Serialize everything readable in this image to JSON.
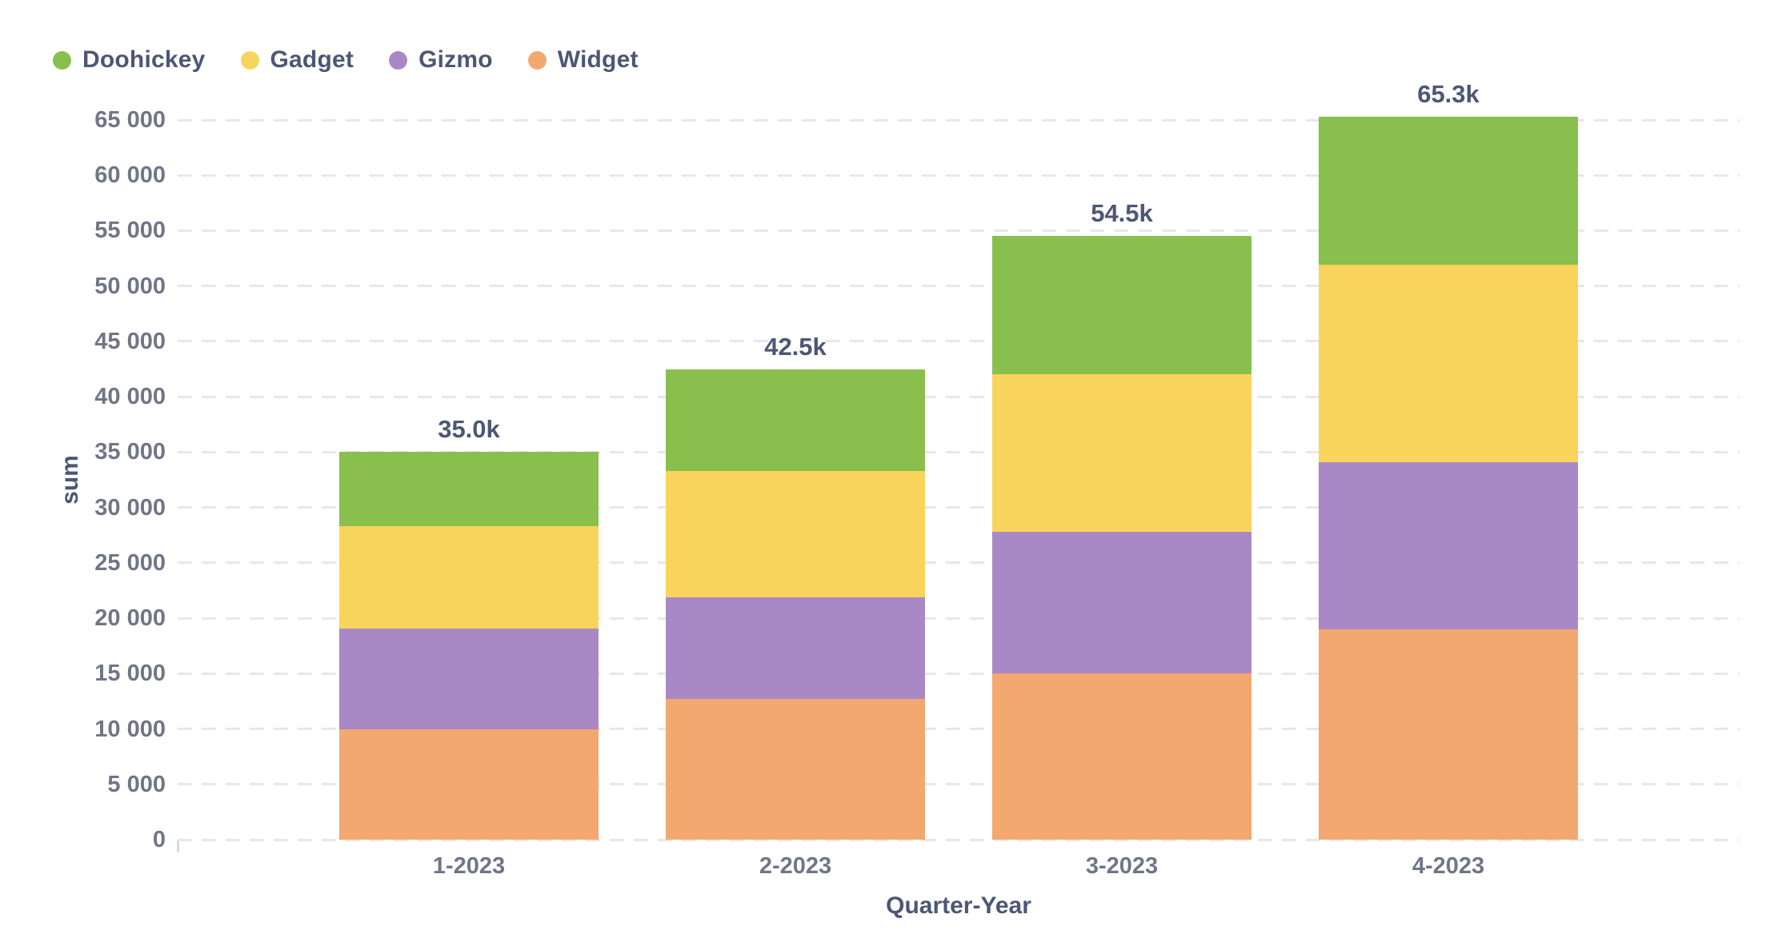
{
  "chart": {
    "y_axis_title": "sum",
    "x_axis_title": "Quarter-Year"
  },
  "chart_data": {
    "type": "bar",
    "stacked": true,
    "categories": [
      "1-2023",
      "2-2023",
      "3-2023",
      "4-2023"
    ],
    "series": [
      {
        "name": "Doohickey",
        "color": "#88BF4D",
        "values": [
          6700,
          9200,
          12500,
          13400
        ]
      },
      {
        "name": "Gadget",
        "color": "#F9D45C",
        "values": [
          9250,
          11400,
          14200,
          17800
        ]
      },
      {
        "name": "Gizmo",
        "color": "#A989C5",
        "values": [
          9100,
          9200,
          12750,
          15100
        ]
      },
      {
        "name": "Widget",
        "color": "#F2A86F",
        "values": [
          9950,
          12700,
          15050,
          19000
        ]
      }
    ],
    "stack_order_bottom_to_top": [
      "Widget",
      "Gizmo",
      "Gadget",
      "Doohickey"
    ],
    "totals": [
      35000,
      42500,
      54500,
      65300
    ],
    "total_labels": [
      "35.0k",
      "42.5k",
      "54.5k",
      "65.3k"
    ],
    "xlabel": "Quarter-Year",
    "ylabel": "sum",
    "ylim": [
      0,
      65000
    ],
    "y_tick_step": 5000,
    "y_tick_labels": [
      "0",
      "5 000",
      "10 000",
      "15 000",
      "20 000",
      "25 000",
      "30 000",
      "35 000",
      "40 000",
      "45 000",
      "50 000",
      "55 000",
      "60 000",
      "65 000"
    ],
    "grid": "dashed-horizontal",
    "legend_position": "top-left"
  },
  "colors": {
    "text_primary": "#4C5773",
    "text_ticks": "#6F7686",
    "gridline": "#E7E8EB",
    "background": "#FFFFFF"
  }
}
